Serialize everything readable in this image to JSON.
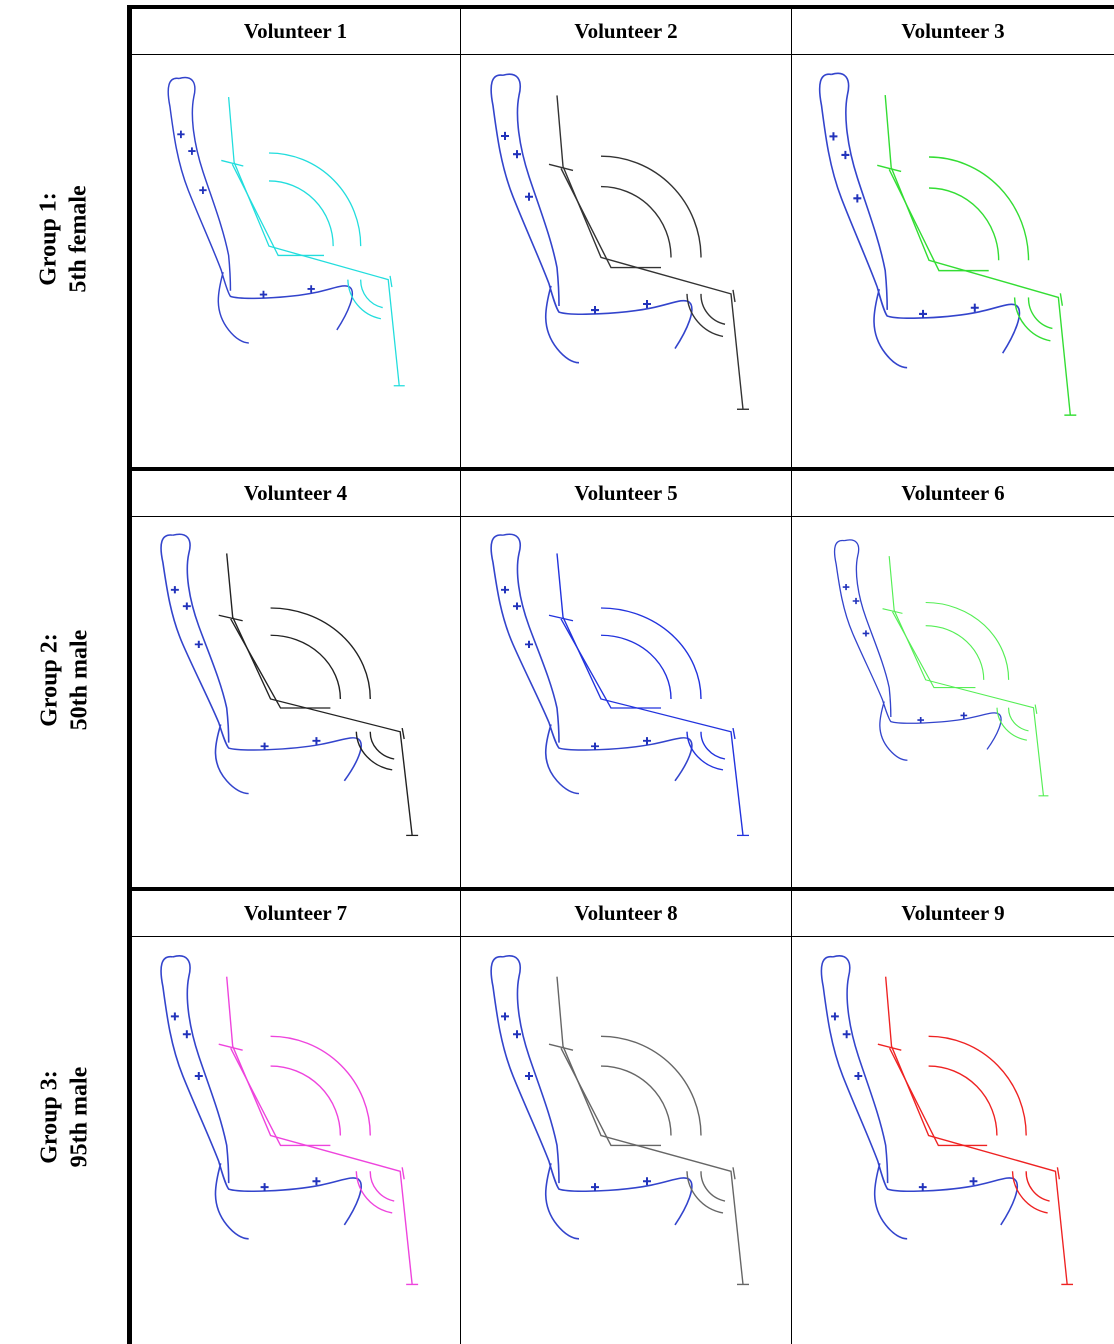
{
  "groups": [
    {
      "label": [
        "Group 1:",
        "5th female"
      ],
      "volunteers": [
        "Volunteer 1",
        "Volunteer 2",
        "Volunteer 3"
      ]
    },
    {
      "label": [
        "Group 2:",
        "50th male"
      ],
      "volunteers": [
        "Volunteer 4",
        "Volunteer 5",
        "Volunteer 6"
      ]
    },
    {
      "label": [
        "Group 3:",
        "95th male"
      ],
      "volunteers": [
        "Volunteer 7",
        "Volunteer 8",
        "Volunteer 9"
      ]
    }
  ]
}
